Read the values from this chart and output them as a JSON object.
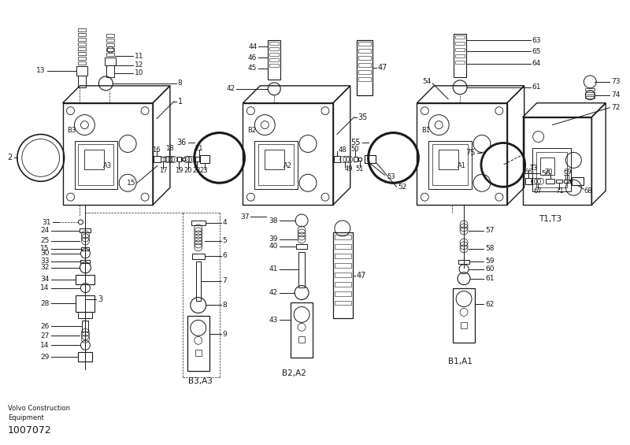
{
  "background_color": "#ffffff",
  "line_color": "#1a1a1a",
  "figsize": [
    8.0,
    5.65
  ],
  "dpi": 100,
  "bottom_left_text1": "Volvo Construction",
  "bottom_left_text2": "Equipment",
  "bottom_left_text3": "1007072",
  "labels_b3a3": "B3,A3",
  "labels_b2a2": "B2,A2",
  "labels_b1a1": "B1,A1",
  "labels_t1t3": "T1,T3"
}
